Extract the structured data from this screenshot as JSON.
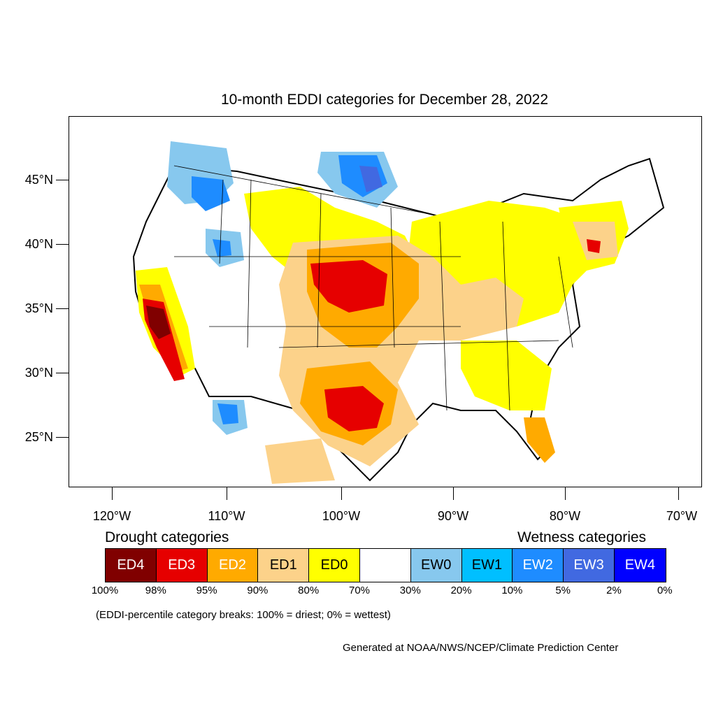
{
  "title": "10-month EDDI categories for December 28, 2022",
  "lat_labels": [
    "45°N",
    "40°N",
    "35°N",
    "30°N",
    "25°N"
  ],
  "lon_labels": [
    "120°W",
    "110°W",
    "100°W",
    "90°W",
    "80°W",
    "70°W"
  ],
  "legend": {
    "drought_title": "Drought categories",
    "wetness_title": "Wetness categories",
    "categories": [
      {
        "label": "ED4",
        "color": "#800000",
        "text_color": "#ffffff"
      },
      {
        "label": "ED3",
        "color": "#e60000",
        "text_color": "#ffffff"
      },
      {
        "label": "ED2",
        "color": "#ffaa00",
        "text_color": "#ffffff"
      },
      {
        "label": "ED1",
        "color": "#fcd28a",
        "text_color": "#000000"
      },
      {
        "label": "ED0",
        "color": "#ffff00",
        "text_color": "#000000"
      },
      {
        "label": "",
        "color": "#ffffff",
        "text_color": "#000000"
      },
      {
        "label": "EW0",
        "color": "#87c8ee",
        "text_color": "#000000"
      },
      {
        "label": "EW1",
        "color": "#00bfff",
        "text_color": "#000000"
      },
      {
        "label": "EW2",
        "color": "#1e8cff",
        "text_color": "#ffffff"
      },
      {
        "label": "EW3",
        "color": "#4169e1",
        "text_color": "#ffffff"
      },
      {
        "label": "EW4",
        "color": "#0000ff",
        "text_color": "#ffffff"
      }
    ],
    "percentiles": [
      "100%",
      "98%",
      "95%",
      "90%",
      "80%",
      "70%",
      "30%",
      "20%",
      "10%",
      "5%",
      "2%",
      "0%"
    ]
  },
  "breaks_note": "(EDDI-percentile category breaks: 100% = driest; 0% = wettest)",
  "credit": "Generated at NOAA/NWS/NCEP/Climate Prediction Center"
}
